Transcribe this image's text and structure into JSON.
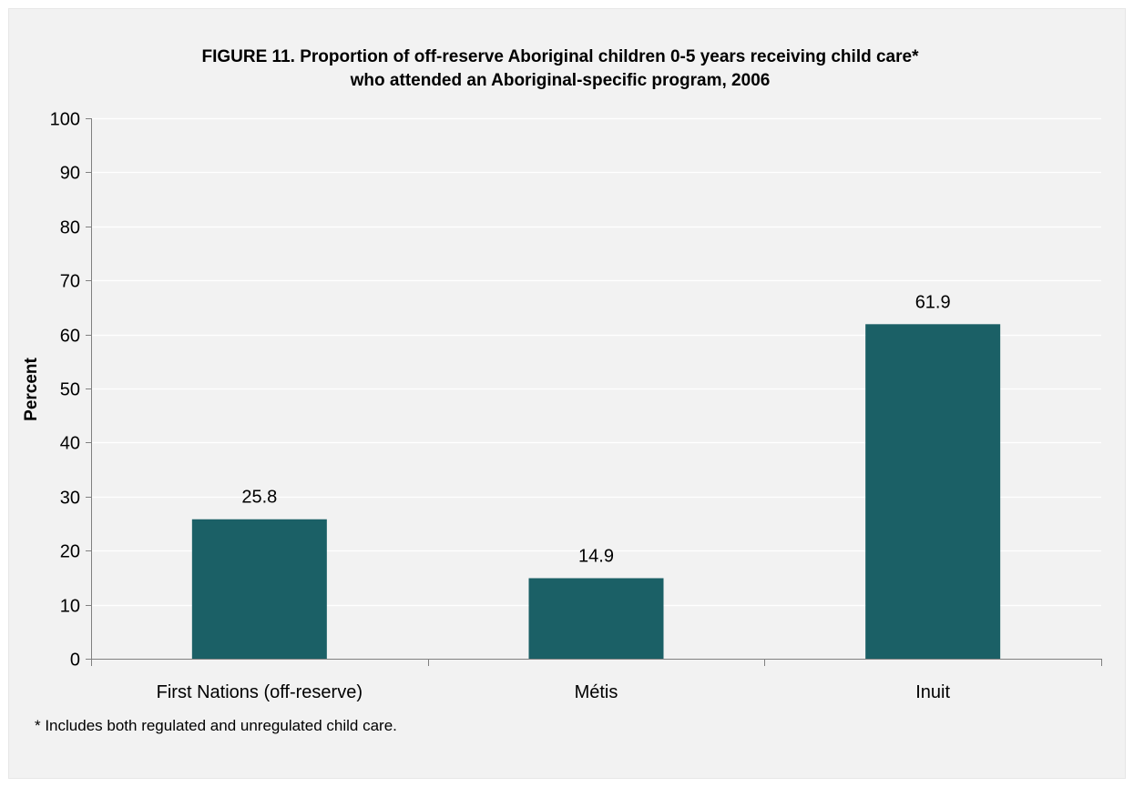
{
  "colors": {
    "background": "#f2f2f2",
    "bar": "#1b6066",
    "gridline": "#ffffff",
    "axis": "#808080",
    "text": "#000000"
  },
  "footnote": "* Includes both regulated and unregulated child care.",
  "chart_data": {
    "type": "bar",
    "title_lines": [
      "FIGURE 11. Proportion of off-reserve Aboriginal children 0-5 years receiving child care*",
      "who attended an Aboriginal-specific program, 2006"
    ],
    "xlabel": "",
    "ylabel": "Percent",
    "categories": [
      "First Nations (off-reserve)",
      "Métis",
      "Inuit"
    ],
    "values": [
      25.8,
      14.9,
      61.9
    ],
    "data_labels": [
      "25.8",
      "14.9",
      "61.9"
    ],
    "ylim": [
      0,
      100
    ],
    "yticks": [
      0,
      10,
      20,
      30,
      40,
      50,
      60,
      70,
      80,
      90,
      100
    ],
    "grid": true,
    "legend": "none"
  }
}
